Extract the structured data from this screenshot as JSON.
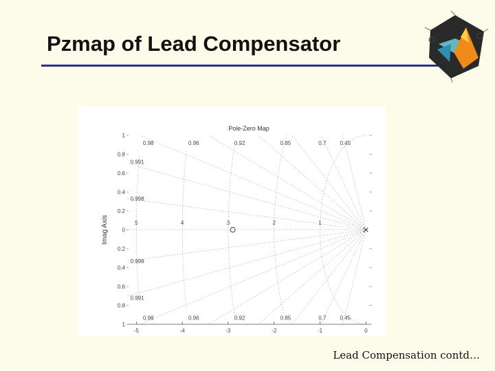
{
  "slide": {
    "title": "Pzmap of Lead Compensator",
    "footer": "Lead Compensation contd…"
  },
  "colors": {
    "background": "#fdfbe9",
    "title_rule": "#2b2f8f",
    "grid": "#9a9a9a"
  },
  "logo": {
    "icon": "matlab-logo-icon"
  },
  "chart_data": {
    "type": "scatter",
    "title": "Pole-Zero Map",
    "xlabel": "",
    "ylabel": "Imag Axis",
    "xlim": [
      -5.2,
      0.1
    ],
    "ylim": [
      -1,
      1
    ],
    "x_ticks": [
      "-5",
      "-4",
      "-3",
      "-2",
      "-1",
      "0"
    ],
    "y_ticks": [
      {
        "value": 1,
        "label": "1"
      },
      {
        "value": 0.8,
        "label": "0.8"
      },
      {
        "value": 0.6,
        "label": "0.6"
      },
      {
        "value": 0.4,
        "label": "0.4"
      },
      {
        "value": 0.2,
        "label": "0.2"
      },
      {
        "value": 0,
        "label": "0"
      },
      {
        "value": -0.2,
        "label": "0.2"
      },
      {
        "value": -0.4,
        "label": "0.4"
      },
      {
        "value": -0.6,
        "label": "0.6"
      },
      {
        "value": -0.8,
        "label": "0.8"
      },
      {
        "value": -1,
        "label": "1"
      }
    ],
    "grid": true,
    "damping_labels": [
      {
        "label": "0.98",
        "x": -4.74,
        "y": 0.92
      },
      {
        "label": "0.96",
        "x": -3.75,
        "y": 0.92
      },
      {
        "label": "0.92",
        "x": -2.75,
        "y": 0.92
      },
      {
        "label": "0.85",
        "x": -1.75,
        "y": 0.92
      },
      {
        "label": "0.7",
        "x": -0.95,
        "y": 0.92
      },
      {
        "label": "0.45",
        "x": -0.45,
        "y": 0.92
      },
      {
        "label": "0.991",
        "x": -4.98,
        "y": 0.72
      },
      {
        "label": "0.998",
        "x": -4.98,
        "y": 0.33
      },
      {
        "label": "0.998",
        "x": -4.98,
        "y": -0.33
      },
      {
        "label": "0.991",
        "x": -4.98,
        "y": -0.72
      },
      {
        "label": "0.98",
        "x": -4.74,
        "y": -0.93
      },
      {
        "label": "0.96",
        "x": -3.75,
        "y": -0.93
      },
      {
        "label": "0.92",
        "x": -2.75,
        "y": -0.93
      },
      {
        "label": "0.85",
        "x": -1.75,
        "y": -0.93
      },
      {
        "label": "0.7",
        "x": -0.95,
        "y": -0.93
      },
      {
        "label": "0.45",
        "x": -0.45,
        "y": -0.93
      }
    ],
    "frequency_labels": [
      {
        "label": "5",
        "x": -5,
        "y": 0.04
      },
      {
        "label": "4",
        "x": -4,
        "y": 0.04
      },
      {
        "label": "3",
        "x": -3,
        "y": 0.04
      },
      {
        "label": "2",
        "x": -2,
        "y": 0.04
      },
      {
        "label": "1",
        "x": -1,
        "y": 0.04
      }
    ],
    "zeros": [
      {
        "x": -2.9,
        "y": 0
      }
    ],
    "poles": [
      {
        "x": 0,
        "y": 0
      }
    ]
  }
}
